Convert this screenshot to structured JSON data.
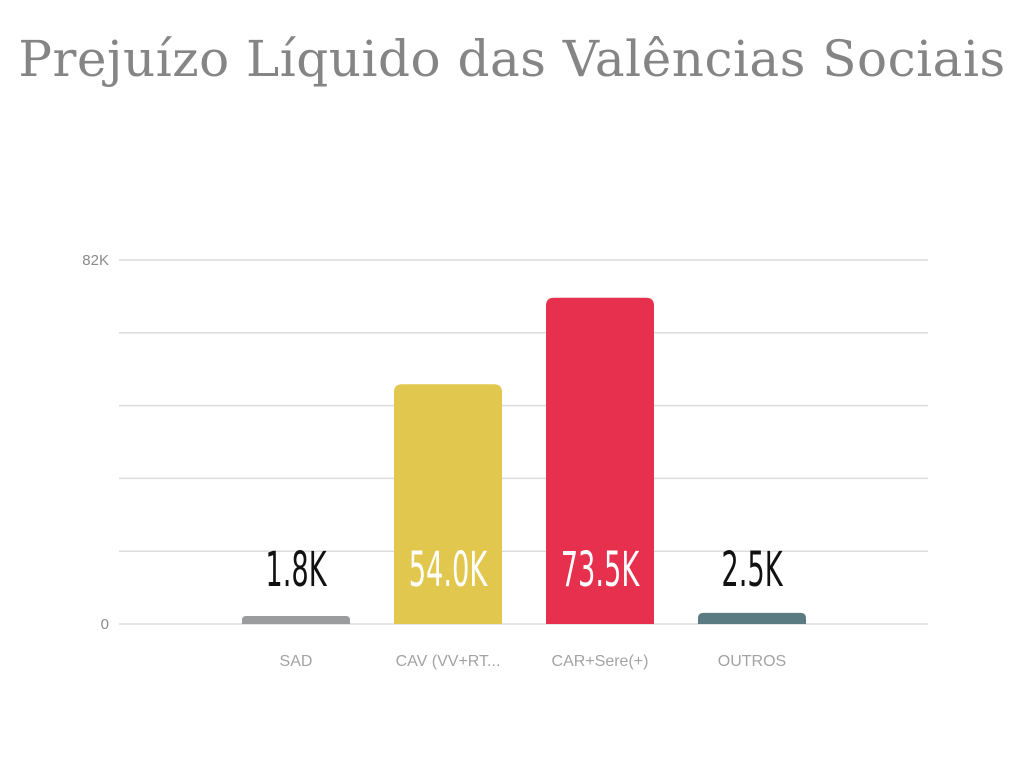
{
  "chart_data": {
    "type": "bar",
    "title": "Prejuízo Líquido das Valências Sociais",
    "categories": [
      "SAD",
      "CAV (VV+RT...",
      "CAR+Sere(+)",
      "OUTROS"
    ],
    "values": [
      1800,
      54000,
      73500,
      2500
    ],
    "value_labels": [
      "1.8K",
      "54.0K",
      "73.5K",
      "2.5K"
    ],
    "colors": [
      "#9b9c9e",
      "#e2c74f",
      "#e6304d",
      "#5b7b82"
    ],
    "ylim": [
      0,
      82000
    ],
    "y_tick_labels": [
      "0",
      "82K"
    ],
    "grid": true,
    "legend": "none",
    "xlabel": "",
    "ylabel": ""
  }
}
